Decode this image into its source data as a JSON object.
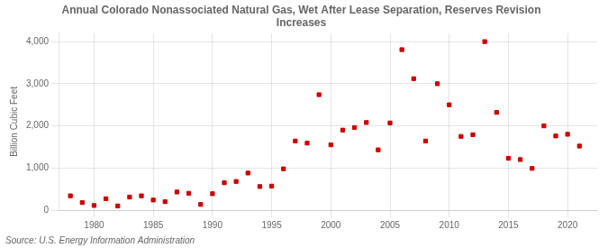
{
  "chart_data": {
    "type": "scatter",
    "title": "Annual Colorado Nonassociated Natural Gas, Wet After Lease Separation, Reserves Revision\nIncreases",
    "ylabel": "Billion Cubic Feet",
    "source": "Source: U.S. Energy Information Administration",
    "x": [
      1978,
      1979,
      1980,
      1981,
      1982,
      1983,
      1984,
      1985,
      1986,
      1987,
      1988,
      1989,
      1990,
      1991,
      1992,
      1993,
      1994,
      1995,
      1996,
      1997,
      1998,
      1999,
      2000,
      2001,
      2002,
      2003,
      2004,
      2005,
      2006,
      2007,
      2008,
      2009,
      2010,
      2011,
      2012,
      2013,
      2014,
      2015,
      2016,
      2017,
      2018,
      2019,
      2020,
      2021
    ],
    "values": [
      340,
      180,
      110,
      270,
      100,
      310,
      340,
      240,
      200,
      430,
      400,
      135,
      390,
      650,
      680,
      880,
      560,
      570,
      980,
      1640,
      1590,
      2740,
      1550,
      1900,
      1960,
      2080,
      1430,
      2070,
      3810,
      3120,
      1640,
      3000,
      2500,
      1750,
      1790,
      4000,
      2320,
      1230,
      1200,
      990,
      2000,
      1760,
      1800,
      1520
    ],
    "color": "#cc0000",
    "marker": "square",
    "xlim": [
      1977,
      2022.5
    ],
    "ylim": [
      0,
      4200
    ],
    "xticks": [
      1980,
      1985,
      1990,
      1995,
      2000,
      2005,
      2010,
      2015,
      2020
    ],
    "yticks": [
      0,
      {
        "value": 1000,
        "label": "1,000"
      },
      {
        "value": 2000,
        "label": "2,000"
      },
      {
        "value": 3000,
        "label": "3,000"
      },
      {
        "value": 4000,
        "label": "4,000"
      }
    ],
    "grid": true
  }
}
